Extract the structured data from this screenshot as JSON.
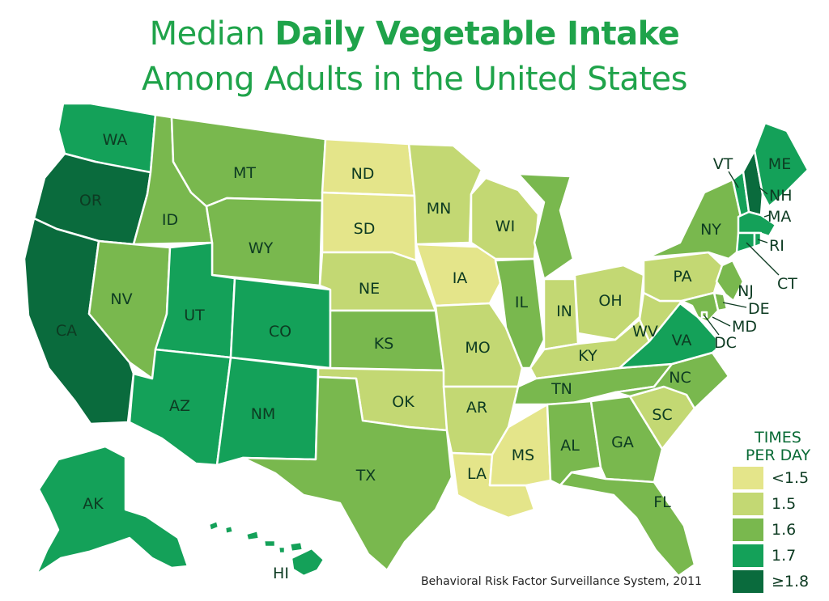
{
  "title": {
    "prefix": "Median",
    "bold": "Daily Vegetable Intake",
    "line2": "Among Adults in the United States"
  },
  "legend": {
    "title_line1": "TIMES",
    "title_line2": "PER DAY",
    "items": [
      {
        "label": "<1.5",
        "color": "#e4e58a"
      },
      {
        "label": "1.5",
        "color": "#c3d873"
      },
      {
        "label": "1.6",
        "color": "#79b84e"
      },
      {
        "label": "1.7",
        "color": "#14a159"
      },
      {
        "label": "≥1.8",
        "color": "#0a6b3d"
      }
    ]
  },
  "source": "Behavioral Risk Factor Surveillance System, 2011",
  "states": {
    "WA": {
      "label": "WA",
      "category": "1.7"
    },
    "OR": {
      "label": "OR",
      "category": "≥1.8"
    },
    "CA": {
      "label": "CA",
      "category": "≥1.8"
    },
    "ID": {
      "label": "ID",
      "category": "1.6"
    },
    "NV": {
      "label": "NV",
      "category": "1.6"
    },
    "MT": {
      "label": "MT",
      "category": "1.6"
    },
    "WY": {
      "label": "WY",
      "category": "1.6"
    },
    "UT": {
      "label": "UT",
      "category": "1.7"
    },
    "CO": {
      "label": "CO",
      "category": "1.7"
    },
    "AZ": {
      "label": "AZ",
      "category": "1.7"
    },
    "NM": {
      "label": "NM",
      "category": "1.7"
    },
    "ND": {
      "label": "ND",
      "category": "<1.5"
    },
    "SD": {
      "label": "SD",
      "category": "<1.5"
    },
    "NE": {
      "label": "NE",
      "category": "1.5"
    },
    "KS": {
      "label": "KS",
      "category": "1.6"
    },
    "OK": {
      "label": "OK",
      "category": "1.5"
    },
    "TX": {
      "label": "TX",
      "category": "1.6"
    },
    "MN": {
      "label": "MN",
      "category": "1.5"
    },
    "IA": {
      "label": "IA",
      "category": "<1.5"
    },
    "MO": {
      "label": "MO",
      "category": "1.5"
    },
    "AR": {
      "label": "AR",
      "category": "1.5"
    },
    "LA": {
      "label": "LA",
      "category": "<1.5"
    },
    "WI": {
      "label": "WI",
      "category": "1.5"
    },
    "IL": {
      "label": "IL",
      "category": "1.6"
    },
    "MI": {
      "label": "MI",
      "category": "1.6"
    },
    "IN": {
      "label": "IN",
      "category": "1.5"
    },
    "OH": {
      "label": "OH",
      "category": "1.5"
    },
    "KY": {
      "label": "KY",
      "category": "1.5"
    },
    "TN": {
      "label": "TN",
      "category": "1.6"
    },
    "MS": {
      "label": "MS",
      "category": "<1.5"
    },
    "AL": {
      "label": "AL",
      "category": "1.6"
    },
    "GA": {
      "label": "GA",
      "category": "1.6"
    },
    "FL": {
      "label": "FL",
      "category": "1.6"
    },
    "SC": {
      "label": "SC",
      "category": "1.5"
    },
    "NC": {
      "label": "NC",
      "category": "1.6"
    },
    "VA": {
      "label": "VA",
      "category": "1.7"
    },
    "WV": {
      "label": "WV",
      "category": "1.5"
    },
    "PA": {
      "label": "PA",
      "category": "1.5"
    },
    "NY": {
      "label": "NY",
      "category": "1.6"
    },
    "NJ": {
      "label": "NJ",
      "category": "1.6"
    },
    "DE": {
      "label": "DE",
      "category": "1.6"
    },
    "MD": {
      "label": "MD",
      "category": "1.6"
    },
    "DC": {
      "label": "DC",
      "category": "1.6"
    },
    "VT": {
      "label": "VT",
      "category": "1.7"
    },
    "NH": {
      "label": "NH",
      "category": "≥1.8"
    },
    "ME": {
      "label": "ME",
      "category": "1.7"
    },
    "MA": {
      "label": "MA",
      "category": "1.7"
    },
    "RI": {
      "label": "RI",
      "category": "1.7"
    },
    "CT": {
      "label": "CT",
      "category": "1.7"
    },
    "AK": {
      "label": "AK",
      "category": "1.7"
    },
    "HI": {
      "label": "HI",
      "category": "1.7"
    }
  }
}
